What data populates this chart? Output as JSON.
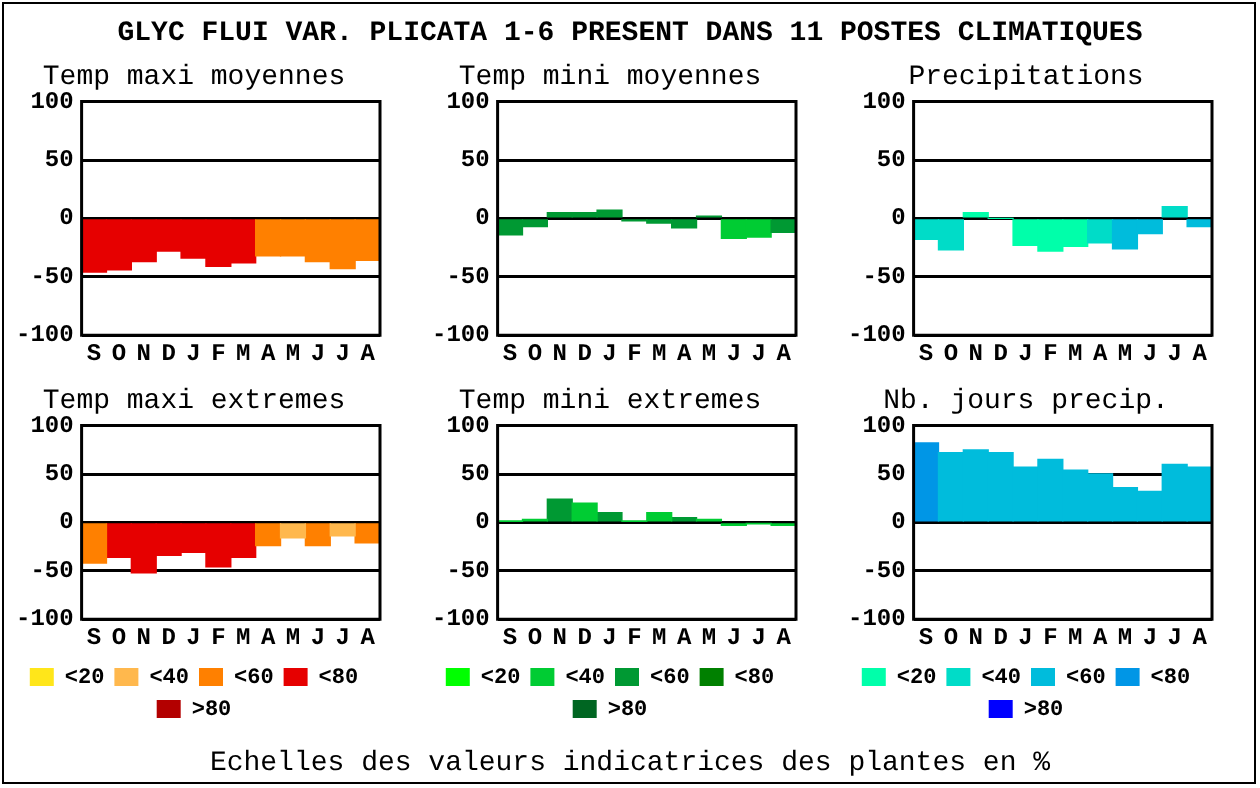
{
  "chart_data": [
    {
      "type": "bar",
      "title": "Temp maxi moyennes",
      "annotations": [
        "GLYC FLUI VAR. PLICATA  1-6 PRESENT DANS  11 POSTES CLIMATIQUES"
      ],
      "categories": [
        "S",
        "O",
        "N",
        "D",
        "J",
        "F",
        "M",
        "A",
        "M",
        "J",
        "J",
        "A"
      ],
      "values": [
        -46,
        -44,
        -37,
        -28,
        -34,
        -41,
        -38,
        -32,
        -32,
        -37,
        -43,
        -36
      ],
      "colors": [
        "#e60000",
        "#e60000",
        "#e60000",
        "#e60000",
        "#e60000",
        "#e60000",
        "#e60000",
        "#ff8000",
        "#ff8000",
        "#ff8000",
        "#ff8000",
        "#ff8000"
      ],
      "ylim": [
        -100,
        100
      ],
      "yticks": [
        -100,
        -50,
        0,
        50,
        100
      ],
      "grid": "y"
    },
    {
      "type": "bar",
      "title": "Temp mini moyennes",
      "categories": [
        "S",
        "O",
        "N",
        "D",
        "J",
        "F",
        "M",
        "A",
        "M",
        "J",
        "J",
        "A"
      ],
      "values": [
        -14,
        -7,
        5,
        5,
        7,
        -2,
        -4,
        -8,
        2,
        -17,
        -16,
        -12
      ],
      "colors": [
        "#009933",
        "#009933",
        "#009933",
        "#009933",
        "#009933",
        "#009933",
        "#009933",
        "#009933",
        "#009933",
        "#00cc33",
        "#00cc33",
        "#009933"
      ],
      "ylim": [
        -100,
        100
      ],
      "yticks": [
        -100,
        -50,
        0,
        50,
        100
      ],
      "grid": "y"
    },
    {
      "type": "bar",
      "title": "Precipitations",
      "categories": [
        "S",
        "O",
        "N",
        "D",
        "J",
        "F",
        "M",
        "A",
        "M",
        "J",
        "J",
        "A"
      ],
      "values": [
        -18,
        -27,
        5,
        0,
        -23,
        -28,
        -24,
        -21,
        -26,
        -13,
        10,
        -7
      ],
      "colors": [
        "#00dcc8",
        "#00dcc8",
        "#00ffaa",
        "#00ffaa",
        "#00ffaa",
        "#00ffaa",
        "#00ffaa",
        "#00dcc8",
        "#00bcdc",
        "#00bcdc",
        "#00dcc8",
        "#00bcdc"
      ],
      "ylim": [
        -100,
        100
      ],
      "yticks": [
        -100,
        -50,
        0,
        50,
        100
      ],
      "grid": "y"
    },
    {
      "type": "bar",
      "title": "Temp maxi extremes",
      "categories": [
        "S",
        "O",
        "N",
        "D",
        "J",
        "F",
        "M",
        "A",
        "M",
        "J",
        "J",
        "A"
      ],
      "stacked": true,
      "legend": "bottom",
      "series": [
        {
          "name": "<20",
          "color": "#ffe61a",
          "values": [
            null,
            null,
            null,
            null,
            null,
            null,
            null,
            null,
            null,
            null,
            null,
            null
          ]
        },
        {
          "name": "<40",
          "color": "#ffb84d",
          "values": [
            null,
            null,
            null,
            null,
            null,
            null,
            null,
            null,
            -16,
            null,
            -14,
            null
          ]
        },
        {
          "name": "<60",
          "color": "#ff8000",
          "values": [
            -42,
            null,
            null,
            null,
            null,
            null,
            null,
            -24,
            null,
            -24,
            null,
            -21
          ]
        },
        {
          "name": "<80",
          "color": "#e60000",
          "values": [
            null,
            -36,
            -52,
            -34,
            -31,
            -46,
            -36,
            null,
            null,
            null,
            null,
            null
          ]
        },
        {
          "name": ">80",
          "color": "#b30000",
          "values": [
            null,
            null,
            null,
            null,
            null,
            null,
            null,
            null,
            null,
            null,
            null,
            null
          ]
        }
      ],
      "ylim": [
        -100,
        100
      ],
      "yticks": [
        -100,
        -50,
        0,
        50,
        100
      ],
      "grid": "y"
    },
    {
      "type": "bar",
      "title": "Temp mini extremes",
      "annotations": [
        "Echelles des valeurs indicatrices des plantes en %"
      ],
      "categories": [
        "S",
        "O",
        "N",
        "D",
        "J",
        "F",
        "M",
        "A",
        "M",
        "J",
        "J",
        "A"
      ],
      "stacked": true,
      "legend": "bottom",
      "series": [
        {
          "name": "<20",
          "color": "#00ff00",
          "values": [
            null,
            null,
            null,
            null,
            null,
            null,
            null,
            null,
            null,
            null,
            null,
            null
          ]
        },
        {
          "name": "<40",
          "color": "#00cc33",
          "values": [
            1,
            3,
            null,
            20,
            null,
            1,
            10,
            null,
            3,
            -3,
            -1,
            -3
          ]
        },
        {
          "name": "<60",
          "color": "#009933",
          "values": [
            null,
            null,
            24,
            null,
            10,
            null,
            null,
            5,
            null,
            null,
            null,
            null
          ]
        },
        {
          "name": "<80",
          "color": "#008000",
          "values": [
            null,
            null,
            null,
            null,
            null,
            null,
            null,
            null,
            null,
            null,
            null,
            null
          ]
        },
        {
          "name": ">80",
          "color": "#006622",
          "values": [
            null,
            null,
            null,
            null,
            null,
            null,
            null,
            null,
            null,
            null,
            null,
            null
          ]
        }
      ],
      "ylim": [
        -100,
        100
      ],
      "yticks": [
        -100,
        -50,
        0,
        50,
        100
      ],
      "grid": "y"
    },
    {
      "type": "bar",
      "title": "Nb. jours precip.",
      "categories": [
        "S",
        "O",
        "N",
        "D",
        "J",
        "F",
        "M",
        "A",
        "M",
        "J",
        "J",
        "A"
      ],
      "stacked": true,
      "legend": "bottom",
      "series": [
        {
          "name": "<20",
          "color": "#00ffaa",
          "values": [
            null,
            null,
            null,
            null,
            null,
            null,
            null,
            null,
            null,
            null,
            null,
            null
          ]
        },
        {
          "name": "<40",
          "color": "#00dcc8",
          "values": [
            null,
            null,
            null,
            null,
            null,
            null,
            null,
            null,
            null,
            null,
            null,
            null
          ]
        },
        {
          "name": "<60",
          "color": "#00bcdc",
          "values": [
            null,
            72,
            75,
            72,
            57,
            65,
            54,
            50,
            36,
            32,
            60,
            57
          ]
        },
        {
          "name": "<80",
          "color": "#0096e6",
          "values": [
            82,
            null,
            null,
            null,
            null,
            null,
            null,
            null,
            null,
            null,
            null,
            null
          ]
        },
        {
          "name": ">80",
          "color": "#0000ff",
          "values": [
            null,
            null,
            null,
            null,
            null,
            null,
            null,
            null,
            null,
            null,
            null,
            null
          ]
        }
      ],
      "ylim": [
        -100,
        100
      ],
      "yticks": [
        -100,
        -50,
        0,
        50,
        100
      ],
      "grid": "y"
    }
  ]
}
